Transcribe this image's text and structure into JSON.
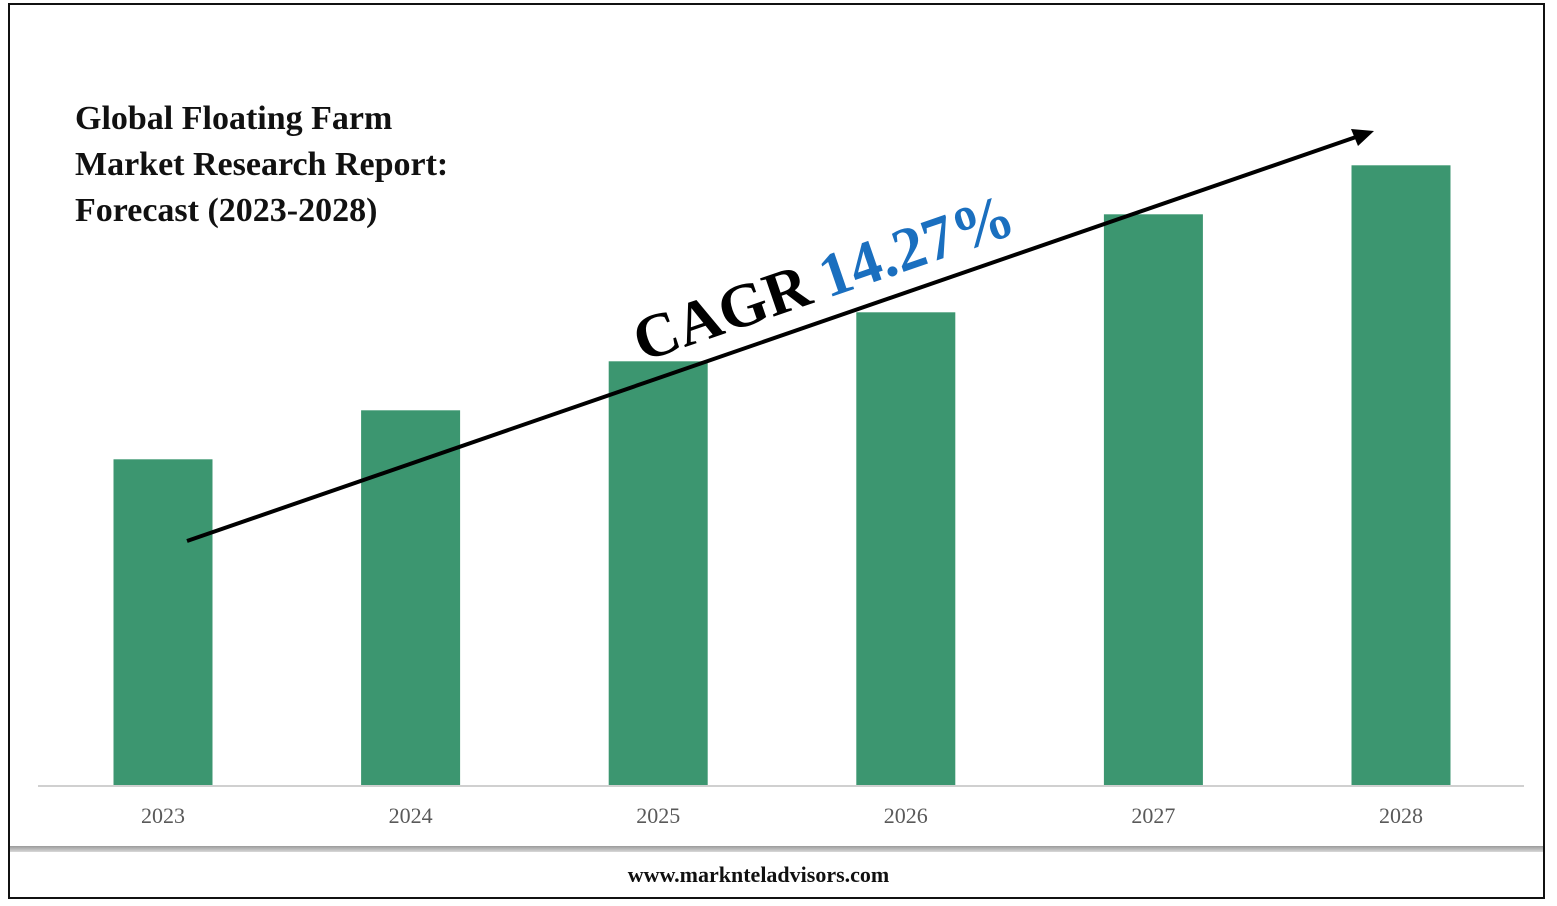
{
  "chart_data": {
    "type": "bar",
    "title_lines": [
      "Global Floating Farm",
      "Market Research Report:",
      "Forecast (2023-2028)"
    ],
    "categories": [
      "2023",
      "2024",
      "2025",
      "2026",
      "2027",
      "2028"
    ],
    "values": [
      1.0,
      1.15,
      1.3,
      1.45,
      1.75,
      1.9
    ],
    "ylim": [
      0,
      2.1
    ],
    "grid": false,
    "annotation": {
      "cagr_label": "CAGR",
      "cagr_value": "14.27%"
    },
    "bar_color": "#3c9670",
    "accent_color": "#1a6fbf"
  },
  "footer": {
    "website": "www.marknteladvisors.com"
  }
}
